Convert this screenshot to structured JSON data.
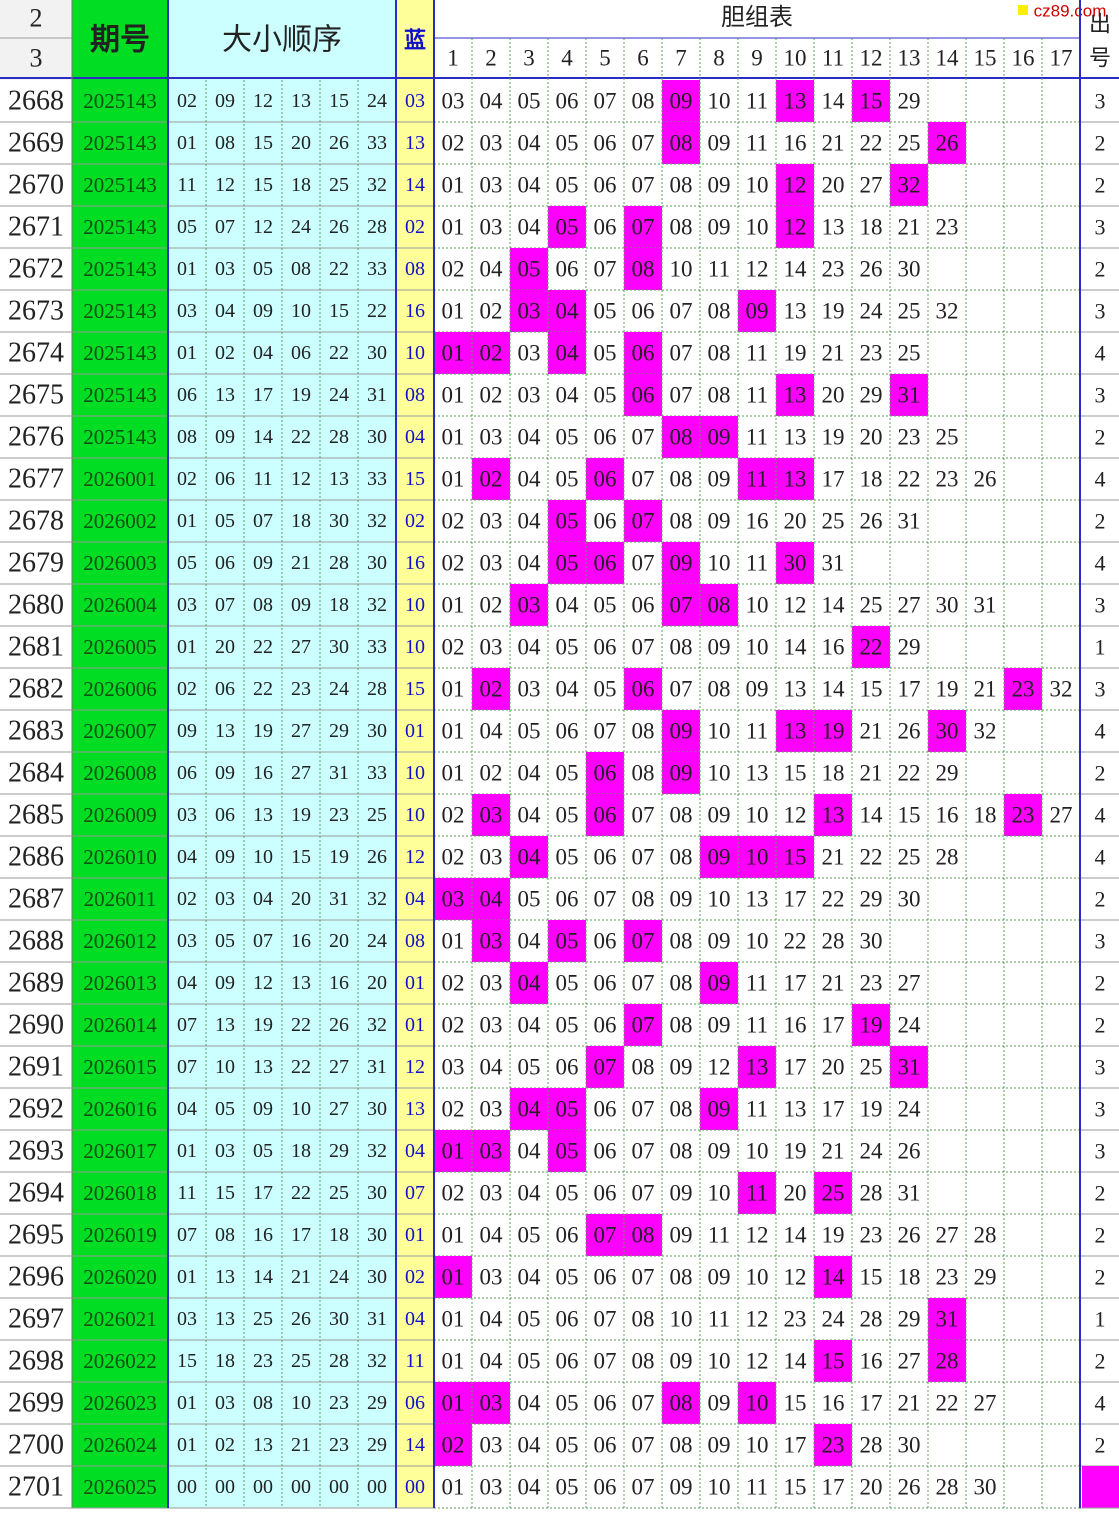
{
  "header": {
    "top1": "2",
    "top2": "3",
    "period": "期号",
    "order": "大小顺序",
    "blue": "蓝",
    "dan": "胆组表",
    "dan_cols": [
      1,
      2,
      3,
      4,
      5,
      6,
      7,
      8,
      9,
      10,
      11,
      12,
      13,
      14,
      15,
      16,
      17
    ],
    "out1": "出",
    "out2": "号",
    "watermark": "cz89.com"
  },
  "highlight_color": "#ff00ff",
  "rows": [
    {
      "num": "2668",
      "period": "2025143",
      "reds": [
        "02",
        "09",
        "12",
        "13",
        "15",
        "24"
      ],
      "blue": "03",
      "dan": [
        "03",
        "04",
        "05",
        "06",
        "07",
        "08",
        "09",
        "10",
        "11",
        "13",
        "14",
        "15",
        "29"
      ],
      "hl": [
        6,
        9,
        11
      ],
      "out": "3"
    },
    {
      "num": "2669",
      "period": "2025143",
      "reds": [
        "01",
        "08",
        "15",
        "20",
        "26",
        "33"
      ],
      "blue": "13",
      "dan": [
        "02",
        "03",
        "04",
        "05",
        "06",
        "07",
        "08",
        "09",
        "11",
        "16",
        "21",
        "22",
        "25",
        "26"
      ],
      "hl": [
        6,
        13
      ],
      "out": "2"
    },
    {
      "num": "2670",
      "period": "2025143",
      "reds": [
        "11",
        "12",
        "15",
        "18",
        "25",
        "32"
      ],
      "blue": "14",
      "dan": [
        "01",
        "03",
        "04",
        "05",
        "06",
        "07",
        "08",
        "09",
        "10",
        "12",
        "20",
        "27",
        "32"
      ],
      "hl": [
        9,
        12
      ],
      "out": "2"
    },
    {
      "num": "2671",
      "period": "2025143",
      "reds": [
        "05",
        "07",
        "12",
        "24",
        "26",
        "28"
      ],
      "blue": "02",
      "dan": [
        "01",
        "03",
        "04",
        "05",
        "06",
        "07",
        "08",
        "09",
        "10",
        "12",
        "13",
        "18",
        "21",
        "23"
      ],
      "hl": [
        3,
        5,
        9
      ],
      "out": "3"
    },
    {
      "num": "2672",
      "period": "2025143",
      "reds": [
        "01",
        "03",
        "05",
        "08",
        "22",
        "33"
      ],
      "blue": "08",
      "dan": [
        "02",
        "04",
        "05",
        "06",
        "07",
        "08",
        "10",
        "11",
        "12",
        "14",
        "23",
        "26",
        "30"
      ],
      "hl": [
        2,
        5
      ],
      "out": "2"
    },
    {
      "num": "2673",
      "period": "2025143",
      "reds": [
        "03",
        "04",
        "09",
        "10",
        "15",
        "22"
      ],
      "blue": "16",
      "dan": [
        "01",
        "02",
        "03",
        "04",
        "05",
        "06",
        "07",
        "08",
        "09",
        "13",
        "19",
        "24",
        "25",
        "32"
      ],
      "hl": [
        2,
        3,
        8
      ],
      "out": "3"
    },
    {
      "num": "2674",
      "period": "2025143",
      "reds": [
        "01",
        "02",
        "04",
        "06",
        "22",
        "30"
      ],
      "blue": "10",
      "dan": [
        "01",
        "02",
        "03",
        "04",
        "05",
        "06",
        "07",
        "08",
        "11",
        "19",
        "21",
        "23",
        "25"
      ],
      "hl": [
        0,
        1,
        3,
        5
      ],
      "out": "4"
    },
    {
      "num": "2675",
      "period": "2025143",
      "reds": [
        "06",
        "13",
        "17",
        "19",
        "24",
        "31"
      ],
      "blue": "08",
      "dan": [
        "01",
        "02",
        "03",
        "04",
        "05",
        "06",
        "07",
        "08",
        "11",
        "13",
        "20",
        "29",
        "31"
      ],
      "hl": [
        5,
        9,
        12
      ],
      "out": "3"
    },
    {
      "num": "2676",
      "period": "2025143",
      "reds": [
        "08",
        "09",
        "14",
        "22",
        "28",
        "30"
      ],
      "blue": "04",
      "dan": [
        "01",
        "03",
        "04",
        "05",
        "06",
        "07",
        "08",
        "09",
        "11",
        "13",
        "19",
        "20",
        "23",
        "25"
      ],
      "hl": [
        6,
        7
      ],
      "out": "2"
    },
    {
      "num": "2677",
      "period": "2026001",
      "reds": [
        "02",
        "06",
        "11",
        "12",
        "13",
        "33"
      ],
      "blue": "15",
      "dan": [
        "01",
        "02",
        "04",
        "05",
        "06",
        "07",
        "08",
        "09",
        "11",
        "13",
        "17",
        "18",
        "22",
        "23",
        "26"
      ],
      "hl": [
        1,
        4,
        8,
        9
      ],
      "out": "4"
    },
    {
      "num": "2678",
      "period": "2026002",
      "reds": [
        "01",
        "05",
        "07",
        "18",
        "30",
        "32"
      ],
      "blue": "02",
      "dan": [
        "02",
        "03",
        "04",
        "05",
        "06",
        "07",
        "08",
        "09",
        "16",
        "20",
        "25",
        "26",
        "31"
      ],
      "hl": [
        3,
        5
      ],
      "out": "2"
    },
    {
      "num": "2679",
      "period": "2026003",
      "reds": [
        "05",
        "06",
        "09",
        "21",
        "28",
        "30"
      ],
      "blue": "16",
      "dan": [
        "02",
        "03",
        "04",
        "05",
        "06",
        "07",
        "09",
        "10",
        "11",
        "30",
        "31"
      ],
      "hl": [
        3,
        4,
        6,
        9
      ],
      "out": "4"
    },
    {
      "num": "2680",
      "period": "2026004",
      "reds": [
        "03",
        "07",
        "08",
        "09",
        "18",
        "32"
      ],
      "blue": "10",
      "dan": [
        "01",
        "02",
        "03",
        "04",
        "05",
        "06",
        "07",
        "08",
        "10",
        "12",
        "14",
        "25",
        "27",
        "30",
        "31"
      ],
      "hl": [
        2,
        6,
        7
      ],
      "out": "3"
    },
    {
      "num": "2681",
      "period": "2026005",
      "reds": [
        "01",
        "20",
        "22",
        "27",
        "30",
        "33"
      ],
      "blue": "10",
      "dan": [
        "02",
        "03",
        "04",
        "05",
        "06",
        "07",
        "08",
        "09",
        "10",
        "14",
        "16",
        "22",
        "29"
      ],
      "hl": [
        11
      ],
      "out": "1"
    },
    {
      "num": "2682",
      "period": "2026006",
      "reds": [
        "02",
        "06",
        "22",
        "23",
        "24",
        "28"
      ],
      "blue": "15",
      "dan": [
        "01",
        "02",
        "03",
        "04",
        "05",
        "06",
        "07",
        "08",
        "09",
        "13",
        "14",
        "15",
        "17",
        "19",
        "21",
        "23",
        "32"
      ],
      "hl": [
        1,
        5,
        15
      ],
      "out": "3"
    },
    {
      "num": "2683",
      "period": "2026007",
      "reds": [
        "09",
        "13",
        "19",
        "27",
        "29",
        "30"
      ],
      "blue": "01",
      "dan": [
        "01",
        "04",
        "05",
        "06",
        "07",
        "08",
        "09",
        "10",
        "11",
        "13",
        "19",
        "21",
        "26",
        "30",
        "32"
      ],
      "hl": [
        6,
        9,
        10,
        13
      ],
      "out": "4"
    },
    {
      "num": "2684",
      "period": "2026008",
      "reds": [
        "06",
        "09",
        "16",
        "27",
        "31",
        "33"
      ],
      "blue": "10",
      "dan": [
        "01",
        "02",
        "04",
        "05",
        "06",
        "08",
        "09",
        "10",
        "13",
        "15",
        "18",
        "21",
        "22",
        "29"
      ],
      "hl": [
        4,
        6
      ],
      "out": "2"
    },
    {
      "num": "2685",
      "period": "2026009",
      "reds": [
        "03",
        "06",
        "13",
        "19",
        "23",
        "25"
      ],
      "blue": "10",
      "dan": [
        "02",
        "03",
        "04",
        "05",
        "06",
        "07",
        "08",
        "09",
        "10",
        "12",
        "13",
        "14",
        "15",
        "16",
        "18",
        "23",
        "27"
      ],
      "hl": [
        1,
        4,
        10,
        15
      ],
      "out": "4"
    },
    {
      "num": "2686",
      "period": "2026010",
      "reds": [
        "04",
        "09",
        "10",
        "15",
        "19",
        "26"
      ],
      "blue": "12",
      "dan": [
        "02",
        "03",
        "04",
        "05",
        "06",
        "07",
        "08",
        "09",
        "10",
        "15",
        "21",
        "22",
        "25",
        "28"
      ],
      "hl": [
        2,
        7,
        8,
        9
      ],
      "out": "4"
    },
    {
      "num": "2687",
      "period": "2026011",
      "reds": [
        "02",
        "03",
        "04",
        "20",
        "31",
        "32"
      ],
      "blue": "04",
      "dan": [
        "03",
        "04",
        "05",
        "06",
        "07",
        "08",
        "09",
        "10",
        "13",
        "17",
        "22",
        "29",
        "30"
      ],
      "hl": [
        0,
        1
      ],
      "out": "2"
    },
    {
      "num": "2688",
      "period": "2026012",
      "reds": [
        "03",
        "05",
        "07",
        "16",
        "20",
        "24"
      ],
      "blue": "08",
      "dan": [
        "01",
        "03",
        "04",
        "05",
        "06",
        "07",
        "08",
        "09",
        "10",
        "22",
        "28",
        "30"
      ],
      "hl": [
        1,
        3,
        5
      ],
      "out": "3"
    },
    {
      "num": "2689",
      "period": "2026013",
      "reds": [
        "04",
        "09",
        "12",
        "13",
        "16",
        "20"
      ],
      "blue": "01",
      "dan": [
        "02",
        "03",
        "04",
        "05",
        "06",
        "07",
        "08",
        "09",
        "11",
        "17",
        "21",
        "23",
        "27"
      ],
      "hl": [
        2,
        7
      ],
      "out": "2"
    },
    {
      "num": "2690",
      "period": "2026014",
      "reds": [
        "07",
        "13",
        "19",
        "22",
        "26",
        "32"
      ],
      "blue": "01",
      "dan": [
        "02",
        "03",
        "04",
        "05",
        "06",
        "07",
        "08",
        "09",
        "11",
        "16",
        "17",
        "19",
        "24"
      ],
      "hl": [
        5,
        11
      ],
      "out": "2"
    },
    {
      "num": "2691",
      "period": "2026015",
      "reds": [
        "07",
        "10",
        "13",
        "22",
        "27",
        "31"
      ],
      "blue": "12",
      "dan": [
        "03",
        "04",
        "05",
        "06",
        "07",
        "08",
        "09",
        "12",
        "13",
        "17",
        "20",
        "25",
        "31"
      ],
      "hl": [
        4,
        8,
        12
      ],
      "out": "3"
    },
    {
      "num": "2692",
      "period": "2026016",
      "reds": [
        "04",
        "05",
        "09",
        "10",
        "27",
        "30"
      ],
      "blue": "13",
      "dan": [
        "02",
        "03",
        "04",
        "05",
        "06",
        "07",
        "08",
        "09",
        "11",
        "13",
        "17",
        "19",
        "24"
      ],
      "hl": [
        2,
        3,
        7
      ],
      "out": "3"
    },
    {
      "num": "2693",
      "period": "2026017",
      "reds": [
        "01",
        "03",
        "05",
        "18",
        "29",
        "32"
      ],
      "blue": "04",
      "dan": [
        "01",
        "03",
        "04",
        "05",
        "06",
        "07",
        "08",
        "09",
        "10",
        "19",
        "21",
        "24",
        "26"
      ],
      "hl": [
        0,
        1,
        3
      ],
      "out": "3"
    },
    {
      "num": "2694",
      "period": "2026018",
      "reds": [
        "11",
        "15",
        "17",
        "22",
        "25",
        "30"
      ],
      "blue": "07",
      "dan": [
        "02",
        "03",
        "04",
        "05",
        "06",
        "07",
        "09",
        "10",
        "11",
        "20",
        "25",
        "28",
        "31"
      ],
      "hl": [
        8,
        10
      ],
      "out": "2"
    },
    {
      "num": "2695",
      "period": "2026019",
      "reds": [
        "07",
        "08",
        "16",
        "17",
        "18",
        "30"
      ],
      "blue": "01",
      "dan": [
        "01",
        "04",
        "05",
        "06",
        "07",
        "08",
        "09",
        "11",
        "12",
        "14",
        "19",
        "23",
        "26",
        "27",
        "28"
      ],
      "hl": [
        4,
        5
      ],
      "out": "2"
    },
    {
      "num": "2696",
      "period": "2026020",
      "reds": [
        "01",
        "13",
        "14",
        "21",
        "24",
        "30"
      ],
      "blue": "02",
      "dan": [
        "01",
        "03",
        "04",
        "05",
        "06",
        "07",
        "08",
        "09",
        "10",
        "12",
        "14",
        "15",
        "18",
        "23",
        "29"
      ],
      "hl": [
        0,
        10
      ],
      "out": "2"
    },
    {
      "num": "2697",
      "period": "2026021",
      "reds": [
        "03",
        "13",
        "25",
        "26",
        "30",
        "31"
      ],
      "blue": "04",
      "dan": [
        "01",
        "04",
        "05",
        "06",
        "07",
        "08",
        "10",
        "11",
        "12",
        "23",
        "24",
        "28",
        "29",
        "31"
      ],
      "hl": [
        13
      ],
      "out": "1"
    },
    {
      "num": "2698",
      "period": "2026022",
      "reds": [
        "15",
        "18",
        "23",
        "25",
        "28",
        "32"
      ],
      "blue": "11",
      "dan": [
        "01",
        "04",
        "05",
        "06",
        "07",
        "08",
        "09",
        "10",
        "12",
        "14",
        "15",
        "16",
        "27",
        "28"
      ],
      "hl": [
        10,
        13
      ],
      "out": "2"
    },
    {
      "num": "2699",
      "period": "2026023",
      "reds": [
        "01",
        "03",
        "08",
        "10",
        "23",
        "29"
      ],
      "blue": "06",
      "dan": [
        "01",
        "03",
        "04",
        "05",
        "06",
        "07",
        "08",
        "09",
        "10",
        "15",
        "16",
        "17",
        "21",
        "22",
        "27"
      ],
      "hl": [
        0,
        1,
        6,
        8
      ],
      "out": "4"
    },
    {
      "num": "2700",
      "period": "2026024",
      "reds": [
        "01",
        "02",
        "13",
        "21",
        "23",
        "29"
      ],
      "blue": "14",
      "dan": [
        "02",
        "03",
        "04",
        "05",
        "06",
        "07",
        "08",
        "09",
        "10",
        "17",
        "23",
        "28",
        "30"
      ],
      "hl": [
        0,
        10
      ],
      "out": "2"
    },
    {
      "num": "2701",
      "period": "2026025",
      "reds": [
        "00",
        "00",
        "00",
        "00",
        "00",
        "00"
      ],
      "blue": "00",
      "dan": [
        "01",
        "03",
        "04",
        "05",
        "06",
        "07",
        "09",
        "10",
        "11",
        "15",
        "17",
        "20",
        "26",
        "28",
        "30"
      ],
      "hl": [],
      "out": null,
      "out_mark": true
    }
  ]
}
